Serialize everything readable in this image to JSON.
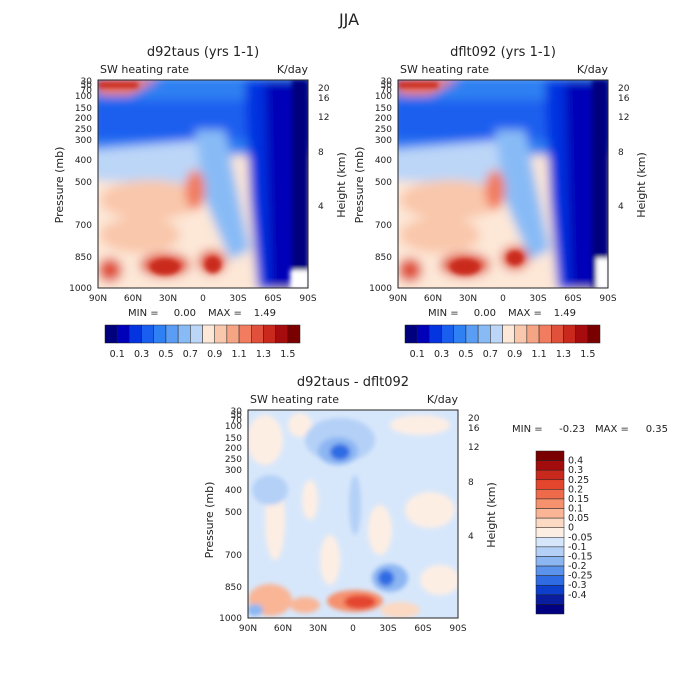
{
  "figure": {
    "title": "JJA"
  },
  "colors": {
    "left_right_scale": [
      "#00007e",
      "#0000b8",
      "#0433e0",
      "#1a5eef",
      "#2f80f2",
      "#5a9df5",
      "#88bbf6",
      "#bcd6f8",
      "#fde7d7",
      "#f9c7ab",
      "#f6a584",
      "#f17c5f",
      "#e0503a",
      "#c9291d",
      "#a60c0d",
      "#7a0000"
    ],
    "diff_scale": [
      "#7a0000",
      "#a30c0d",
      "#c9291d",
      "#e3452d",
      "#ef6a4b",
      "#f6916e",
      "#f9b596",
      "#fcd9c2",
      "#fdeee4",
      "#d7e7fb",
      "#b4d0f7",
      "#8cb6f2",
      "#5b92ec",
      "#2f6ce3",
      "#0e3fcc",
      "#0a1d9e",
      "#000080"
    ]
  },
  "chart_data": [
    {
      "type": "heatmap",
      "panel": "left",
      "title": "d92taus (yrs 1-1)",
      "subtitle_left": "SW heating rate",
      "subtitle_right": "K/day",
      "xlabel": "",
      "ylabel": "Pressure (mb)",
      "ylabel_right": "Height (km)",
      "x_ticks": [
        "90N",
        "60N",
        "30N",
        "0",
        "30S",
        "60S",
        "90S"
      ],
      "y_ticks": [
        "30",
        "50",
        "70",
        "100",
        "150",
        "200",
        "250",
        "300",
        "400",
        "500",
        "700",
        "850",
        "1000"
      ],
      "y_right_ticks": [
        "20",
        "16",
        "12",
        "8",
        "4"
      ],
      "stats": {
        "min_label": "MIN =",
        "min": "0.00",
        "max_label": "MAX =",
        "max": "1.49"
      },
      "colorbar_labels": [
        "0.1",
        "0.3",
        "0.5",
        "0.7",
        "0.9",
        "1.1",
        "1.3",
        "1.5"
      ]
    },
    {
      "type": "heatmap",
      "panel": "right",
      "title": "dflt092 (yrs 1-1)",
      "subtitle_left": "SW heating rate",
      "subtitle_right": "K/day",
      "xlabel": "",
      "ylabel": "Pressure (mb)",
      "ylabel_right": "Height (km)",
      "x_ticks": [
        "90N",
        "60N",
        "30N",
        "0",
        "30S",
        "60S",
        "90S"
      ],
      "y_ticks": [
        "30",
        "50",
        "70",
        "100",
        "150",
        "200",
        "250",
        "300",
        "400",
        "500",
        "700",
        "850",
        "1000"
      ],
      "y_right_ticks": [
        "20",
        "16",
        "12",
        "8",
        "4"
      ],
      "stats": {
        "min_label": "MIN =",
        "min": "0.00",
        "max_label": "MAX =",
        "max": "1.49"
      },
      "colorbar_labels": [
        "0.1",
        "0.3",
        "0.5",
        "0.7",
        "0.9",
        "1.1",
        "1.3",
        "1.5"
      ]
    },
    {
      "type": "heatmap",
      "panel": "bottom",
      "title": "d92taus - dflt092",
      "subtitle_left": "SW heating rate",
      "subtitle_right": "K/day",
      "xlabel": "",
      "ylabel": "Pressure (mb)",
      "ylabel_right": "Height (km)",
      "x_ticks": [
        "90N",
        "60N",
        "30N",
        "0",
        "30S",
        "60S",
        "90S"
      ],
      "y_ticks": [
        "30",
        "50",
        "70",
        "100",
        "150",
        "200",
        "250",
        "300",
        "400",
        "500",
        "700",
        "850",
        "1000"
      ],
      "y_right_ticks": [
        "20",
        "16",
        "12",
        "8",
        "4"
      ],
      "stats": {
        "min_label": "MIN =",
        "min": "-0.23",
        "max_label": "MAX =",
        "max": "0.35"
      },
      "colorbar_labels": [
        "0.4",
        "0.3",
        "0.25",
        "0.2",
        "0.15",
        "0.1",
        "0.05",
        "0",
        "-0.05",
        "-0.1",
        "-0.15",
        "-0.2",
        "-0.25",
        "-0.3",
        "-0.4"
      ]
    }
  ]
}
